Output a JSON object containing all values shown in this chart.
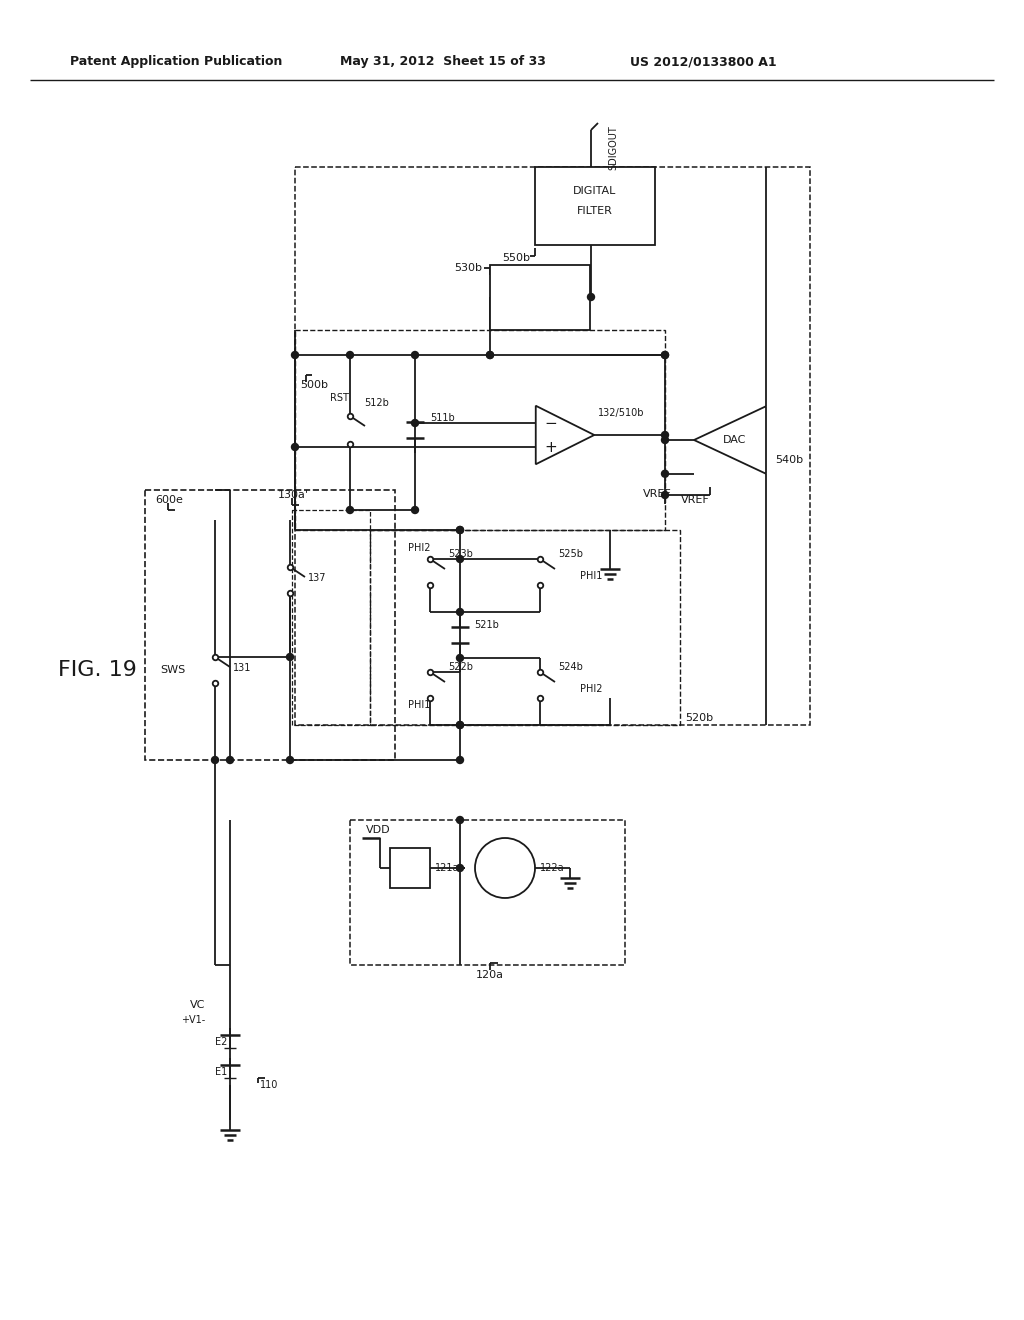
{
  "bg_color": "#ffffff",
  "line_color": "#1a1a1a",
  "header_left": "Patent Application Publication",
  "header_mid": "May 31, 2012  Sheet 15 of 33",
  "header_right": "US 2012/0133800 A1"
}
